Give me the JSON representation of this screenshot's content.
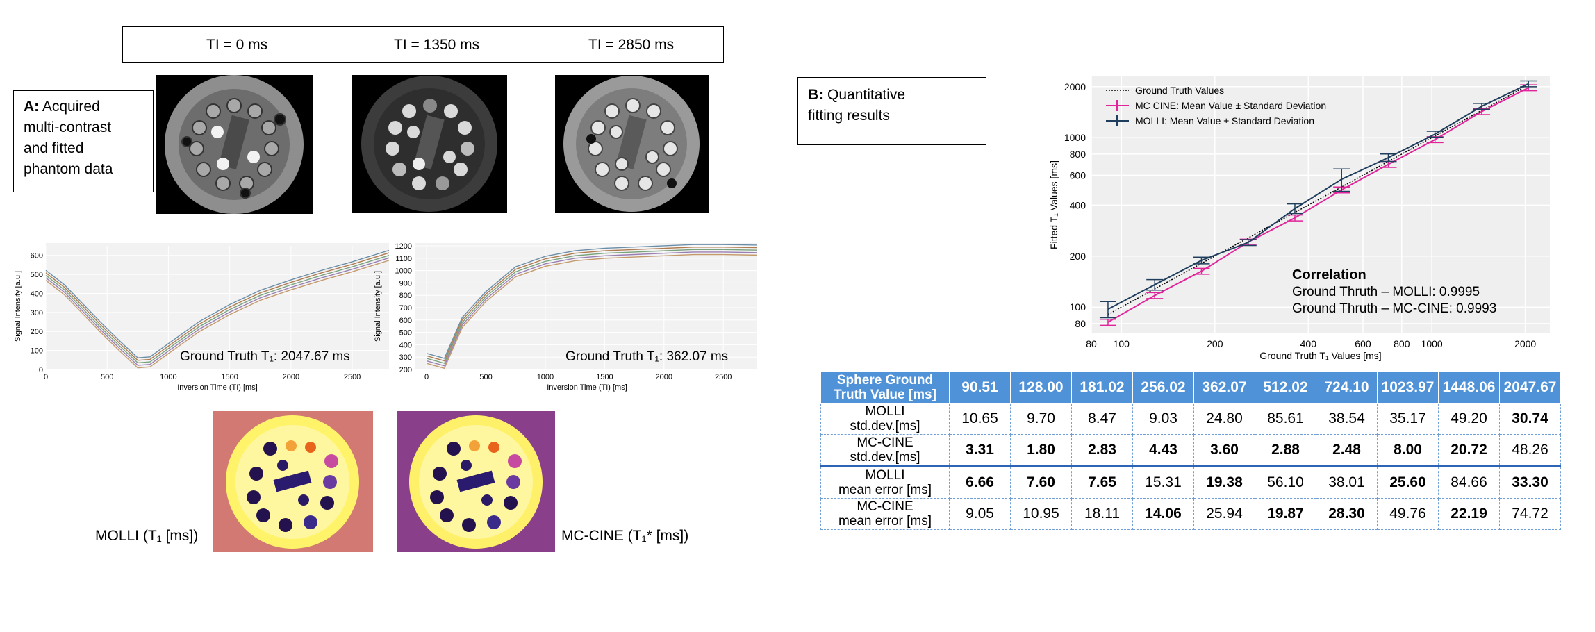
{
  "ti_header": {
    "labels": [
      "TI = 0 ms",
      "TI = 1350 ms",
      "TI = 2850 ms"
    ]
  },
  "panel_a": {
    "prefix": "A:",
    "lines": [
      "Acquired",
      "multi-contrast",
      "and fitted",
      "phantom data"
    ]
  },
  "panel_b": {
    "prefix": "B:",
    "lines": [
      "Quantitative",
      "fitting results"
    ]
  },
  "signal_left": {
    "ylabel": "Signal Intensity [a.u.]",
    "xlabel": "Inversion Time (TI) [ms]",
    "annotation": "Ground Truth T₁: 2047.67 ms",
    "xticks": [
      "0",
      "500",
      "1000",
      "1500",
      "2000",
      "2500"
    ],
    "yticks": [
      "0",
      "100",
      "200",
      "300",
      "400",
      "500",
      "600"
    ]
  },
  "signal_right": {
    "ylabel": "Signal Intensity [a.u.]",
    "xlabel": "Inversion Time (TI) [ms]",
    "annotation": "Ground Truth T₁: 362.07 ms",
    "xticks": [
      "0",
      "500",
      "1000",
      "1500",
      "2000",
      "2500"
    ],
    "yticks": [
      "200",
      "300",
      "400",
      "500",
      "600",
      "700",
      "800",
      "900",
      "1000",
      "1100",
      "1200"
    ]
  },
  "maps": {
    "molli_caption": "MOLLI (T₁  [ms])",
    "mccine_caption": "MC-CINE (T₁* [ms])"
  },
  "chart_data": [
    {
      "type": "line",
      "title": "",
      "xlabel": "Inversion Time (TI) [ms]",
      "ylabel": "Signal Intensity [a.u.]",
      "xlim": [
        0,
        2800
      ],
      "ylim": [
        0,
        650
      ],
      "series": [
        {
          "x": [
            0,
            150,
            300,
            450,
            600,
            750,
            850,
            1000,
            1250,
            1500,
            1750,
            2000,
            2250,
            2500,
            2800
          ],
          "y": [
            495,
            420,
            320,
            220,
            125,
            35,
            40,
            110,
            225,
            315,
            390,
            445,
            495,
            540,
            600
          ]
        }
      ],
      "colors": [
        "#6b8ea8",
        "#b07b4f",
        "#78a37d",
        "#9a7fb5",
        "#c49a6c"
      ]
    },
    {
      "type": "line",
      "title": "",
      "xlabel": "Inversion Time (TI) [ms]",
      "ylabel": "Signal Intensity [a.u.]",
      "xlim": [
        -100,
        2850
      ],
      "ylim": [
        200,
        1200
      ],
      "series": [
        {
          "x": [
            0,
            150,
            300,
            500,
            750,
            1000,
            1250,
            1500,
            1750,
            2000,
            2250,
            2500,
            2800
          ],
          "y": [
            290,
            250,
            580,
            790,
            990,
            1075,
            1120,
            1140,
            1150,
            1160,
            1170,
            1170,
            1165
          ]
        }
      ],
      "colors": [
        "#6b8ea8",
        "#b07b4f",
        "#78a37d",
        "#9a7fb5",
        "#c49a6c"
      ]
    },
    {
      "type": "line",
      "title": "",
      "xlabel": "Ground Truth T₁ Values [ms]",
      "ylabel": "Fitted T₁ Values [ms]",
      "log_scale": true,
      "xlim": [
        80,
        2400
      ],
      "ylim": [
        70,
        2300
      ],
      "xticks": [
        "80",
        "100",
        "200",
        "400",
        "600",
        "800",
        "1000",
        "2000"
      ],
      "yticks": [
        "80",
        "100",
        "200",
        "400",
        "600",
        "800",
        "1000",
        "2000"
      ],
      "x": [
        90.51,
        128.0,
        181.02,
        256.02,
        362.07,
        512.02,
        724.1,
        1023.97,
        1448.06,
        2047.67
      ],
      "series": [
        {
          "name": "Ground Truth Values",
          "color": "#000000",
          "values": [
            90.51,
            128.0,
            181.02,
            256.02,
            362.07,
            512.02,
            724.1,
            1023.97,
            1448.06,
            2047.67
          ]
        },
        {
          "name": "MC CINE: Mean Value ± Standard Deviation",
          "color": "#e0249a",
          "values": [
            81.46,
            117.05,
            162.91,
            241.96,
            336.13,
            492.15,
            695.8,
            974.21,
            1425.87,
            1972.95
          ],
          "std": [
            3.31,
            1.8,
            2.83,
            4.43,
            3.6,
            2.88,
            2.48,
            8.0,
            20.72,
            48.26
          ]
        },
        {
          "name": "MOLLI: Mean Value ± Standard Deviation",
          "color": "#1f3d5c",
          "values": [
            97.17,
            135.6,
            188.67,
            240.71,
            381.45,
            568.12,
            762.11,
            1049.57,
            1532.72,
            2080.97
          ],
          "std": [
            10.65,
            9.7,
            8.47,
            9.03,
            24.8,
            85.61,
            38.54,
            35.17,
            49.2,
            30.74
          ]
        }
      ],
      "legend": "top-left",
      "grid": true,
      "annotation": {
        "title": "Correlation",
        "lines": [
          "Ground Thruth – MOLLI: 0.9995",
          "Ground Thruth – MC-CINE: 0.9993"
        ]
      }
    }
  ],
  "table": {
    "header": [
      "Sphere Ground",
      "Truth Value [ms]"
    ],
    "values": [
      "90.51",
      "128.00",
      "181.02",
      "256.02",
      "362.07",
      "512.02",
      "724.10",
      "1023.97",
      "1448.06",
      "2047.67"
    ],
    "rows": [
      {
        "label": [
          "MOLLI",
          "std.dev.[ms]"
        ],
        "cells": [
          "10.65",
          "9.70",
          "8.47",
          "9.03",
          "24.80",
          "85.61",
          "38.54",
          "35.17",
          "49.20",
          "30.74"
        ],
        "bold": [
          false,
          false,
          false,
          false,
          false,
          false,
          false,
          false,
          false,
          true
        ]
      },
      {
        "label": [
          "MC-CINE",
          "std.dev.[ms]"
        ],
        "cells": [
          "3.31",
          "1.80",
          "2.83",
          "4.43",
          "3.60",
          "2.88",
          "2.48",
          "8.00",
          "20.72",
          "48.26"
        ],
        "bold": [
          true,
          true,
          true,
          true,
          true,
          true,
          true,
          true,
          true,
          false
        ]
      },
      {
        "label": [
          "MOLLI",
          "mean error [ms]"
        ],
        "cells": [
          "6.66",
          "7.60",
          "7.65",
          "15.31",
          "19.38",
          "56.10",
          "38.01",
          "25.60",
          "84.66",
          "33.30"
        ],
        "bold": [
          true,
          true,
          true,
          false,
          true,
          false,
          false,
          true,
          false,
          true
        ]
      },
      {
        "label": [
          "MC-CINE",
          "mean error [ms]"
        ],
        "cells": [
          "9.05",
          "10.95",
          "18.11",
          "14.06",
          "25.94",
          "19.87",
          "28.30",
          "49.76",
          "22.19",
          "74.72"
        ],
        "bold": [
          false,
          false,
          false,
          true,
          false,
          true,
          true,
          false,
          true,
          false
        ]
      }
    ]
  }
}
